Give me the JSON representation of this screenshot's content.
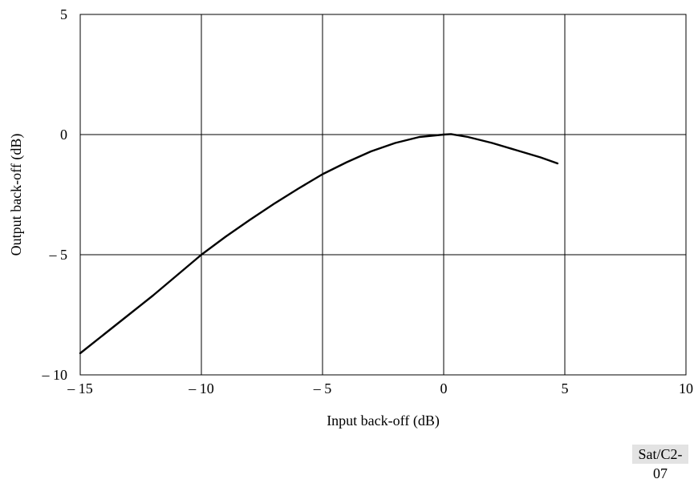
{
  "chart_data": {
    "type": "line",
    "title": "",
    "xlabel": "Input back-off (dB)",
    "ylabel": "Output back-off (dB)",
    "xlim": [
      -15,
      10
    ],
    "ylim": [
      -10,
      5
    ],
    "x_ticks": [
      -15,
      -10,
      -5,
      0,
      5,
      10
    ],
    "y_ticks": [
      -10,
      -5,
      0,
      5
    ],
    "x_tick_labels": [
      "– 15",
      "– 10",
      "– 5",
      "0",
      "5",
      "10"
    ],
    "y_tick_labels": [
      "– 10",
      "– 5",
      "0",
      "5"
    ],
    "grid": true,
    "series": [
      {
        "x": [
          -15,
          -14,
          -13,
          -12,
          -11,
          -10,
          -9,
          -8,
          -7,
          -6,
          -5,
          -4,
          -3,
          -2,
          -1,
          0,
          0.3,
          1,
          2,
          3,
          4,
          4.7
        ],
        "y": [
          -9.1,
          -8.3,
          -7.5,
          -6.7,
          -5.85,
          -5.0,
          -4.25,
          -3.55,
          -2.88,
          -2.25,
          -1.65,
          -1.15,
          -0.7,
          -0.35,
          -0.1,
          0.0,
          0.02,
          -0.1,
          -0.35,
          -0.65,
          -0.95,
          -1.2
        ]
      }
    ]
  },
  "figure_ref": "Sat/C2-07"
}
